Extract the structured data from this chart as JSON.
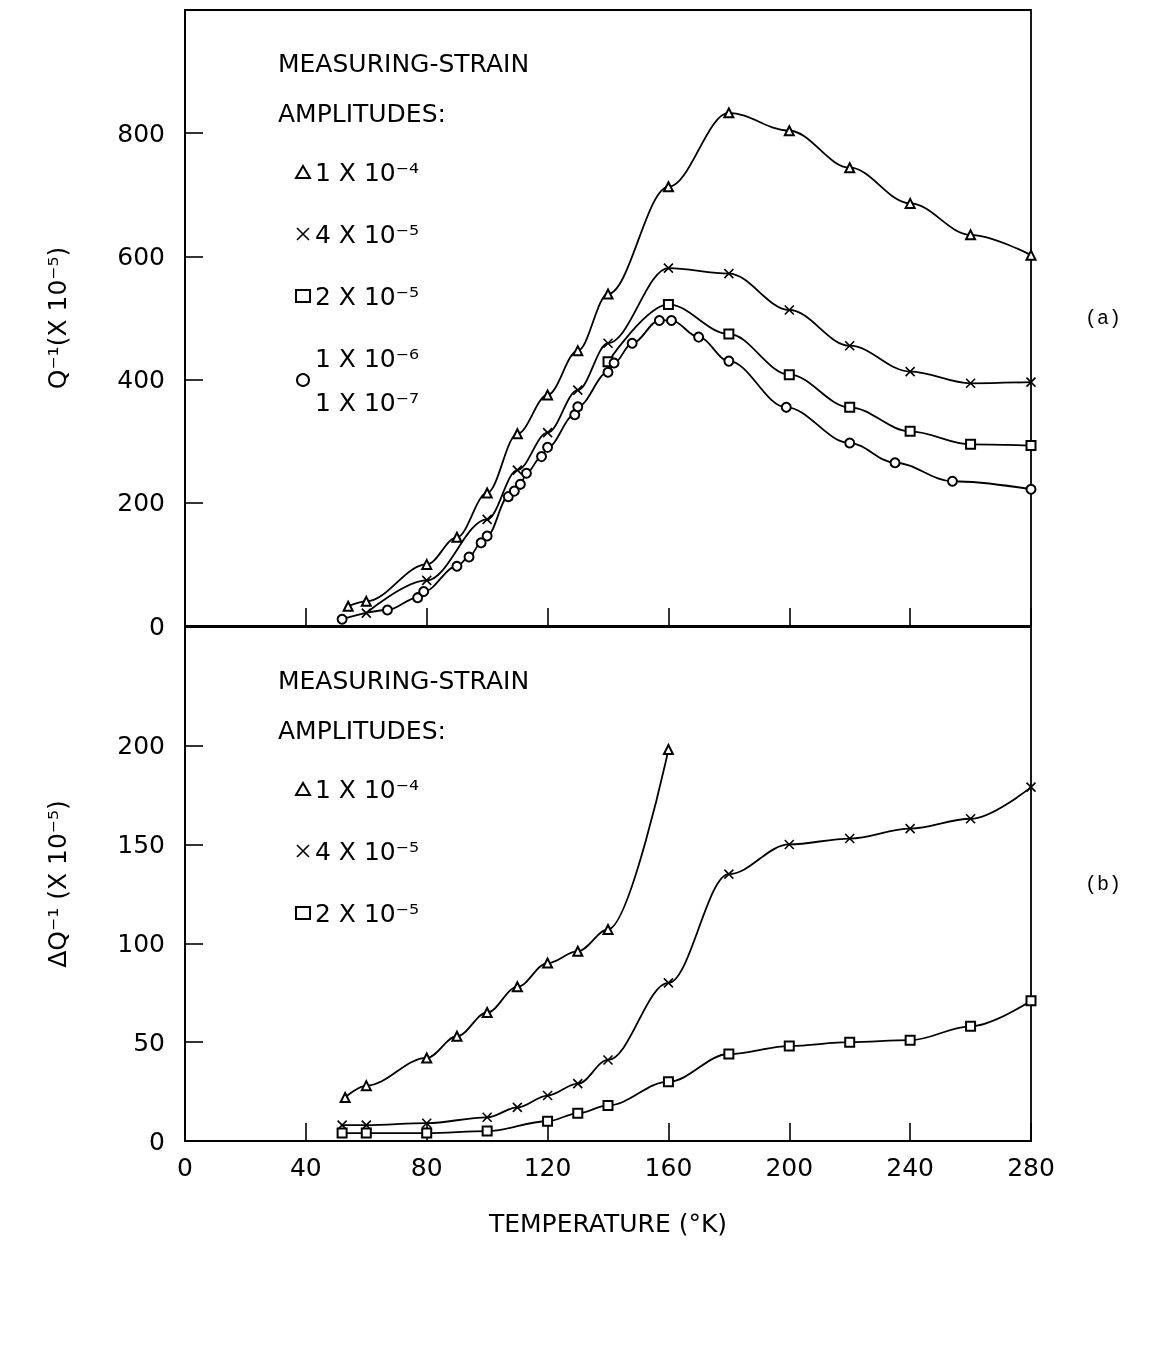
{
  "chart_data": [
    {
      "type": "line",
      "ylabel": "Q⁻¹(X 10⁻⁵)",
      "legend_title": "MEASURING-STRAIN\nAMPLITUDES:",
      "annotations": [
        "(a)"
      ],
      "xlim": [
        0,
        280
      ],
      "xticks": [
        0,
        40,
        80,
        120,
        160,
        200,
        240,
        280
      ],
      "ylim": [
        0,
        1000
      ],
      "yticks": [
        0,
        200,
        400,
        600,
        800
      ],
      "tick_labels": "y",
      "legend": "top left",
      "grid": false,
      "series": [
        {
          "name": "1 X 10⁻⁴",
          "color": "#000000",
          "marker": "triangle",
          "x": [
            54,
            60,
            80,
            90,
            100,
            110,
            120,
            130,
            140,
            160,
            180,
            200,
            220,
            240,
            260,
            280
          ],
          "values": [
            32,
            40,
            100,
            144,
            216,
            312,
            375,
            447,
            539,
            713,
            833,
            804,
            744,
            686,
            635,
            602
          ]
        },
        {
          "name": "4 X 10⁻⁵",
          "color": "#000000",
          "marker": "cross",
          "x": [
            60,
            80,
            100,
            110,
            120,
            130,
            140,
            160,
            180,
            200,
            220,
            240,
            260,
            280
          ],
          "values": [
            21,
            74,
            173,
            253,
            314,
            383,
            459,
            581,
            572,
            513,
            455,
            413,
            394,
            396
          ]
        },
        {
          "name": "2 X 10⁻⁵",
          "color": "#000000",
          "marker": "square",
          "x": [
            140,
            160,
            180,
            200,
            220,
            240,
            260,
            280
          ],
          "values": [
            429,
            522,
            474,
            408,
            355,
            316,
            295,
            293
          ]
        },
        {
          "name": "1 X 10⁻⁶\n1 X 10⁻⁷",
          "color": "#000000",
          "marker": "circle",
          "x": [
            52,
            67,
            77,
            79,
            90,
            94,
            98,
            100,
            107,
            109,
            111,
            113,
            118,
            120,
            129,
            130,
            140,
            142,
            148,
            157,
            161,
            170,
            180,
            199,
            220,
            235,
            254,
            280
          ],
          "values": [
            11,
            26,
            46,
            56,
            97,
            112,
            135,
            146,
            210,
            219,
            230,
            248,
            275,
            290,
            343,
            356,
            412,
            427,
            459,
            496,
            496,
            469,
            430,
            355,
            297,
            265,
            235,
            222
          ]
        }
      ]
    },
    {
      "type": "line",
      "xlabel": "TEMPERATURE (°K)",
      "ylabel": "ΔQ⁻¹ (X 10⁻⁵)",
      "legend_title": "MEASURING-STRAIN\nAMPLITUDES:",
      "annotations": [
        "(b)"
      ],
      "xlim": [
        0,
        280
      ],
      "xticks": [
        0,
        40,
        80,
        120,
        160,
        200,
        240,
        280
      ],
      "ylim": [
        0,
        260
      ],
      "yticks": [
        0,
        50,
        100,
        150,
        200
      ],
      "legend": "top left",
      "grid": false,
      "series": [
        {
          "name": "1 X 10⁻⁴",
          "color": "#000000",
          "marker": "triangle",
          "x": [
            53,
            60,
            80,
            90,
            100,
            110,
            120,
            130,
            140,
            160
          ],
          "values": [
            22,
            28,
            42,
            53,
            65,
            78,
            90,
            96,
            107,
            198
          ]
        },
        {
          "name": "4 X 10⁻⁵",
          "color": "#000000",
          "marker": "cross",
          "x": [
            52,
            60,
            80,
            100,
            110,
            120,
            130,
            140,
            160,
            180,
            200,
            220,
            240,
            260,
            280
          ],
          "values": [
            8,
            8,
            9,
            12,
            17,
            23,
            29,
            41,
            80,
            135,
            150,
            153,
            158,
            163,
            179
          ]
        },
        {
          "name": "2 X 10⁻⁵",
          "color": "#000000",
          "marker": "square",
          "x": [
            52,
            60,
            80,
            100,
            120,
            130,
            140,
            160,
            180,
            200,
            220,
            240,
            260,
            280
          ],
          "values": [
            4,
            4,
            4,
            5,
            10,
            14,
            18,
            30,
            44,
            48,
            50,
            51,
            58,
            71
          ]
        }
      ]
    }
  ]
}
